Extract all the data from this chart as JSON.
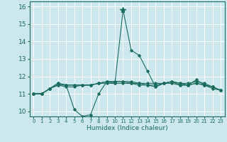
{
  "title": "",
  "xlabel": "Humidex (Indice chaleur)",
  "bg_color": "#cce8ee",
  "grid_color": "#ffffff",
  "line_color": "#1a6b5a",
  "xlim": [
    -0.5,
    23.5
  ],
  "ylim": [
    9.7,
    16.3
  ],
  "xticks": [
    0,
    1,
    2,
    3,
    4,
    5,
    6,
    7,
    8,
    9,
    10,
    11,
    12,
    13,
    14,
    15,
    16,
    17,
    18,
    19,
    20,
    21,
    22,
    23
  ],
  "yticks": [
    10,
    11,
    12,
    13,
    14,
    15,
    16
  ],
  "series": [
    [
      11.0,
      11.0,
      11.3,
      11.6,
      11.5,
      10.1,
      9.7,
      9.8,
      11.0,
      11.7,
      11.6,
      15.8,
      13.5,
      13.2,
      12.3,
      11.4,
      11.6,
      11.7,
      11.5,
      11.5,
      11.8,
      11.5,
      11.3,
      11.2
    ],
    [
      11.0,
      11.0,
      11.3,
      11.5,
      11.4,
      11.4,
      11.5,
      11.5,
      11.6,
      11.6,
      11.6,
      11.6,
      11.6,
      11.6,
      11.6,
      11.6,
      11.6,
      11.6,
      11.5,
      11.5,
      11.6,
      11.5,
      11.4,
      11.2
    ],
    [
      11.0,
      11.0,
      11.3,
      11.6,
      11.5,
      11.5,
      11.5,
      11.5,
      11.6,
      11.7,
      11.7,
      11.7,
      11.7,
      11.6,
      11.5,
      11.5,
      11.6,
      11.7,
      11.6,
      11.6,
      11.7,
      11.6,
      11.4,
      11.2
    ],
    [
      11.0,
      11.0,
      11.3,
      11.5,
      11.5,
      11.5,
      11.5,
      11.5,
      11.6,
      11.7,
      11.7,
      11.7,
      11.6,
      11.5,
      11.5,
      11.4,
      11.6,
      11.7,
      11.6,
      11.5,
      11.6,
      11.5,
      11.4,
      11.2
    ]
  ],
  "peak_x": 11,
  "peak_y": 15.8
}
